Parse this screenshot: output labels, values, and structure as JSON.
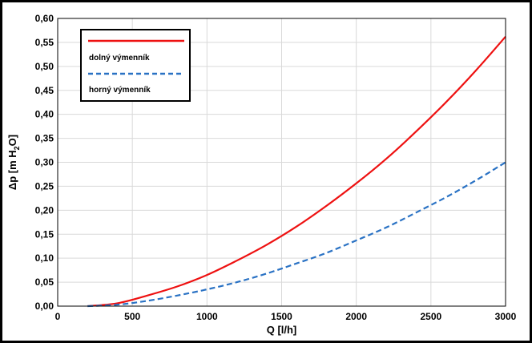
{
  "chart_data": {
    "type": "line",
    "xlabel": "Q [l/h]",
    "ylabel": "Δp [m H2O]",
    "ylabel_parts": {
      "main": "Δp [m H",
      "sub": "2",
      "tail": "O]"
    },
    "xlim": [
      0,
      3000
    ],
    "ylim": [
      0,
      0.6
    ],
    "x_ticks": [
      0,
      500,
      1000,
      1500,
      2000,
      2500,
      3000
    ],
    "y_ticks": [
      0.0,
      0.05,
      0.1,
      0.15,
      0.2,
      0.25,
      0.3,
      0.35,
      0.4,
      0.45,
      0.5,
      0.55,
      0.6
    ],
    "y_tick_labels": [
      "0,00",
      "0,05",
      "0,10",
      "0,15",
      "0,20",
      "0,25",
      "0,30",
      "0,35",
      "0,40",
      "0,45",
      "0,50",
      "0,55",
      "0,60"
    ],
    "x_tick_labels": [
      "0",
      "500",
      "1000",
      "1500",
      "2000",
      "2500",
      "3000"
    ],
    "grid": true,
    "legend_position": "top-left",
    "x": [
      200,
      400,
      600,
      800,
      1000,
      1200,
      1400,
      1600,
      1800,
      2000,
      2200,
      2400,
      2600,
      2800,
      3000
    ],
    "series": [
      {
        "name": "dolný výmenník",
        "color": "#ee1111",
        "style": "solid",
        "values": [
          0.0,
          0.006,
          0.022,
          0.041,
          0.065,
          0.095,
          0.128,
          0.166,
          0.209,
          0.256,
          0.307,
          0.364,
          0.425,
          0.491,
          0.562
        ]
      },
      {
        "name": "horný výmenník",
        "color": "#2a72c4",
        "style": "dashed",
        "values": [
          0.0,
          0.003,
          0.011,
          0.022,
          0.035,
          0.05,
          0.068,
          0.089,
          0.111,
          0.137,
          0.164,
          0.195,
          0.227,
          0.262,
          0.3
        ]
      }
    ]
  }
}
